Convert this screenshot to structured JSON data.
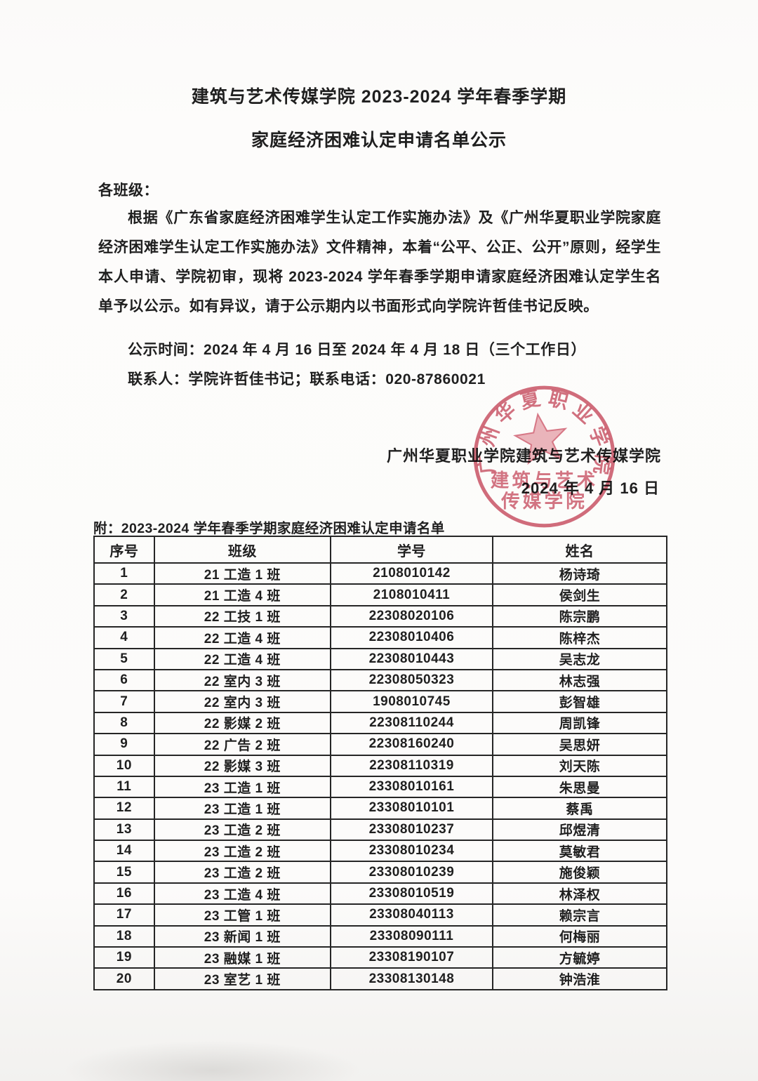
{
  "doc": {
    "title_line1": "建筑与艺术传媒学院 2023-2024 学年春季学期",
    "title_line2": "家庭经济困难认定申请名单公示",
    "salutation": "各班级：",
    "paragraph": "根据《广东省家庭经济困难学生认定工作实施办法》及《广州华夏职业学院家庭经济困难学生认定工作实施办法》文件精神，本着“公平、公正、公开”原则，经学生本人申请、学院初审，现将 2023-2024 学年春季学期申请家庭经济困难认定学生名单予以公示。如有异议，请于公示期内以书面形式向学院许哲佳书记反映。",
    "publicity_period": "公示时间：2024 年 4 月 16 日至 2024 年 4 月 18 日（三个工作日）",
    "contact": "联系人：学院许哲佳书记；联系电话：020-87860021",
    "signature_org": "广州华夏职业学院建筑与艺术传媒学院",
    "signature_date": "2024 年 4 月 16 日",
    "table_caption": "附：2023-2024 学年春季学期家庭经济困难认定申请名单"
  },
  "stamp": {
    "ring_text": "广州华夏职业学院",
    "inner_line1": "建筑与艺术",
    "inner_line2": "传媒学院",
    "ring_color": "#c95063",
    "star_fill": "#e8a3ad"
  },
  "colors": {
    "ink": "#1f1f1f",
    "paper": "#fbfaf9",
    "table_border": "#262626"
  },
  "table": {
    "headers": [
      "序号",
      "班级",
      "学号",
      "姓名"
    ],
    "rows": [
      [
        "1",
        "21 工造 1 班",
        "2108010142",
        "杨诗琦"
      ],
      [
        "2",
        "21 工造 4 班",
        "2108010411",
        "侯剑生"
      ],
      [
        "3",
        "22 工技 1 班",
        "22308020106",
        "陈宗鹏"
      ],
      [
        "4",
        "22 工造 4 班",
        "22308010406",
        "陈梓杰"
      ],
      [
        "5",
        "22 工造 4 班",
        "22308010443",
        "吴志龙"
      ],
      [
        "6",
        "22 室内 3 班",
        "22308050323",
        "林志强"
      ],
      [
        "7",
        "22 室内 3 班",
        "1908010745",
        "彭智雄"
      ],
      [
        "8",
        "22 影媒 2 班",
        "22308110244",
        "周凯锋"
      ],
      [
        "9",
        "22 广告 2 班",
        "22308160240",
        "吴思妍"
      ],
      [
        "10",
        "22 影媒 3 班",
        "22308110319",
        "刘天陈"
      ],
      [
        "11",
        "23 工造 1 班",
        "23308010161",
        "朱思曼"
      ],
      [
        "12",
        "23 工造 1 班",
        "23308010101",
        "蔡禹"
      ],
      [
        "13",
        "23 工造 2 班",
        "23308010237",
        "邱煜清"
      ],
      [
        "14",
        "23 工造 2 班",
        "23308010234",
        "莫敏君"
      ],
      [
        "15",
        "23 工造 2 班",
        "23308010239",
        "施俊颖"
      ],
      [
        "16",
        "23 工造 4 班",
        "23308010519",
        "林泽权"
      ],
      [
        "17",
        "23 工管 1 班",
        "23308040113",
        "赖宗言"
      ],
      [
        "18",
        "23 新闻 1 班",
        "23308090111",
        "何梅丽"
      ],
      [
        "19",
        "23 融媒 1 班",
        "23308190107",
        "方毓婷"
      ],
      [
        "20",
        "23 室艺 1 班",
        "23308130148",
        "钟浩淮"
      ]
    ]
  }
}
